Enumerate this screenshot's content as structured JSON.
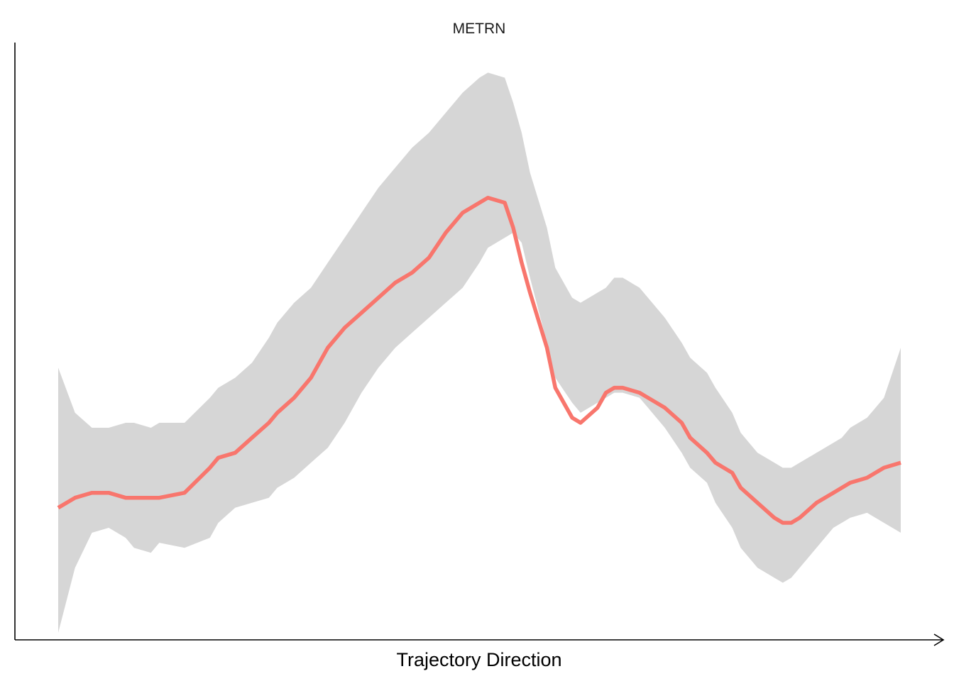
{
  "chart_data": {
    "type": "line",
    "title": "METRN",
    "xlabel": "Trajectory Direction",
    "ylabel": "",
    "grid": false,
    "x_ticks_shown": false,
    "y_ticks_shown": false,
    "series": [
      {
        "color": "#F8766D",
        "band_color": "#D6D6D6",
        "x": [
          0.0,
          0.02,
          0.04,
          0.06,
          0.08,
          0.09,
          0.11,
          0.12,
          0.15,
          0.18,
          0.19,
          0.21,
          0.23,
          0.25,
          0.26,
          0.28,
          0.3,
          0.32,
          0.34,
          0.36,
          0.38,
          0.4,
          0.42,
          0.44,
          0.46,
          0.48,
          0.5,
          0.51,
          0.53,
          0.54,
          0.55,
          0.56,
          0.58,
          0.59,
          0.61,
          0.62,
          0.64,
          0.65,
          0.66,
          0.67,
          0.69,
          0.7,
          0.72,
          0.74,
          0.75,
          0.77,
          0.78,
          0.8,
          0.81,
          0.83,
          0.85,
          0.86,
          0.87,
          0.88,
          0.9,
          0.92,
          0.93,
          0.94,
          0.96,
          0.98,
          1.0
        ],
        "y": [
          0.44,
          0.46,
          0.47,
          0.47,
          0.46,
          0.46,
          0.46,
          0.46,
          0.47,
          0.52,
          0.54,
          0.55,
          0.58,
          0.61,
          0.63,
          0.66,
          0.7,
          0.76,
          0.8,
          0.83,
          0.86,
          0.89,
          0.91,
          0.94,
          0.99,
          1.03,
          1.05,
          1.06,
          1.05,
          1.0,
          0.93,
          0.87,
          0.76,
          0.68,
          0.62,
          0.61,
          0.64,
          0.67,
          0.68,
          0.68,
          0.67,
          0.66,
          0.64,
          0.61,
          0.58,
          0.55,
          0.53,
          0.51,
          0.48,
          0.45,
          0.42,
          0.41,
          0.41,
          0.42,
          0.45,
          0.47,
          0.48,
          0.49,
          0.5,
          0.52,
          0.53
        ],
        "ymin": [
          0.19,
          0.32,
          0.39,
          0.4,
          0.38,
          0.36,
          0.35,
          0.37,
          0.36,
          0.38,
          0.41,
          0.44,
          0.45,
          0.46,
          0.48,
          0.5,
          0.53,
          0.56,
          0.61,
          0.67,
          0.72,
          0.76,
          0.79,
          0.82,
          0.85,
          0.88,
          0.93,
          0.96,
          0.98,
          0.99,
          0.97,
          0.9,
          0.77,
          0.7,
          0.65,
          0.63,
          0.65,
          0.66,
          0.67,
          0.67,
          0.66,
          0.64,
          0.6,
          0.55,
          0.52,
          0.49,
          0.45,
          0.4,
          0.36,
          0.32,
          0.3,
          0.29,
          0.3,
          0.32,
          0.36,
          0.4,
          0.41,
          0.42,
          0.43,
          0.41,
          0.39
        ],
        "ymax": [
          0.72,
          0.63,
          0.6,
          0.6,
          0.61,
          0.61,
          0.6,
          0.61,
          0.61,
          0.66,
          0.68,
          0.7,
          0.73,
          0.78,
          0.81,
          0.85,
          0.88,
          0.93,
          0.98,
          1.03,
          1.08,
          1.12,
          1.16,
          1.19,
          1.23,
          1.27,
          1.3,
          1.31,
          1.3,
          1.25,
          1.19,
          1.11,
          1.0,
          0.92,
          0.86,
          0.85,
          0.87,
          0.88,
          0.9,
          0.9,
          0.88,
          0.86,
          0.82,
          0.77,
          0.74,
          0.71,
          0.68,
          0.63,
          0.59,
          0.55,
          0.53,
          0.52,
          0.52,
          0.53,
          0.55,
          0.57,
          0.58,
          0.6,
          0.62,
          0.66,
          0.76
        ]
      }
    ]
  }
}
